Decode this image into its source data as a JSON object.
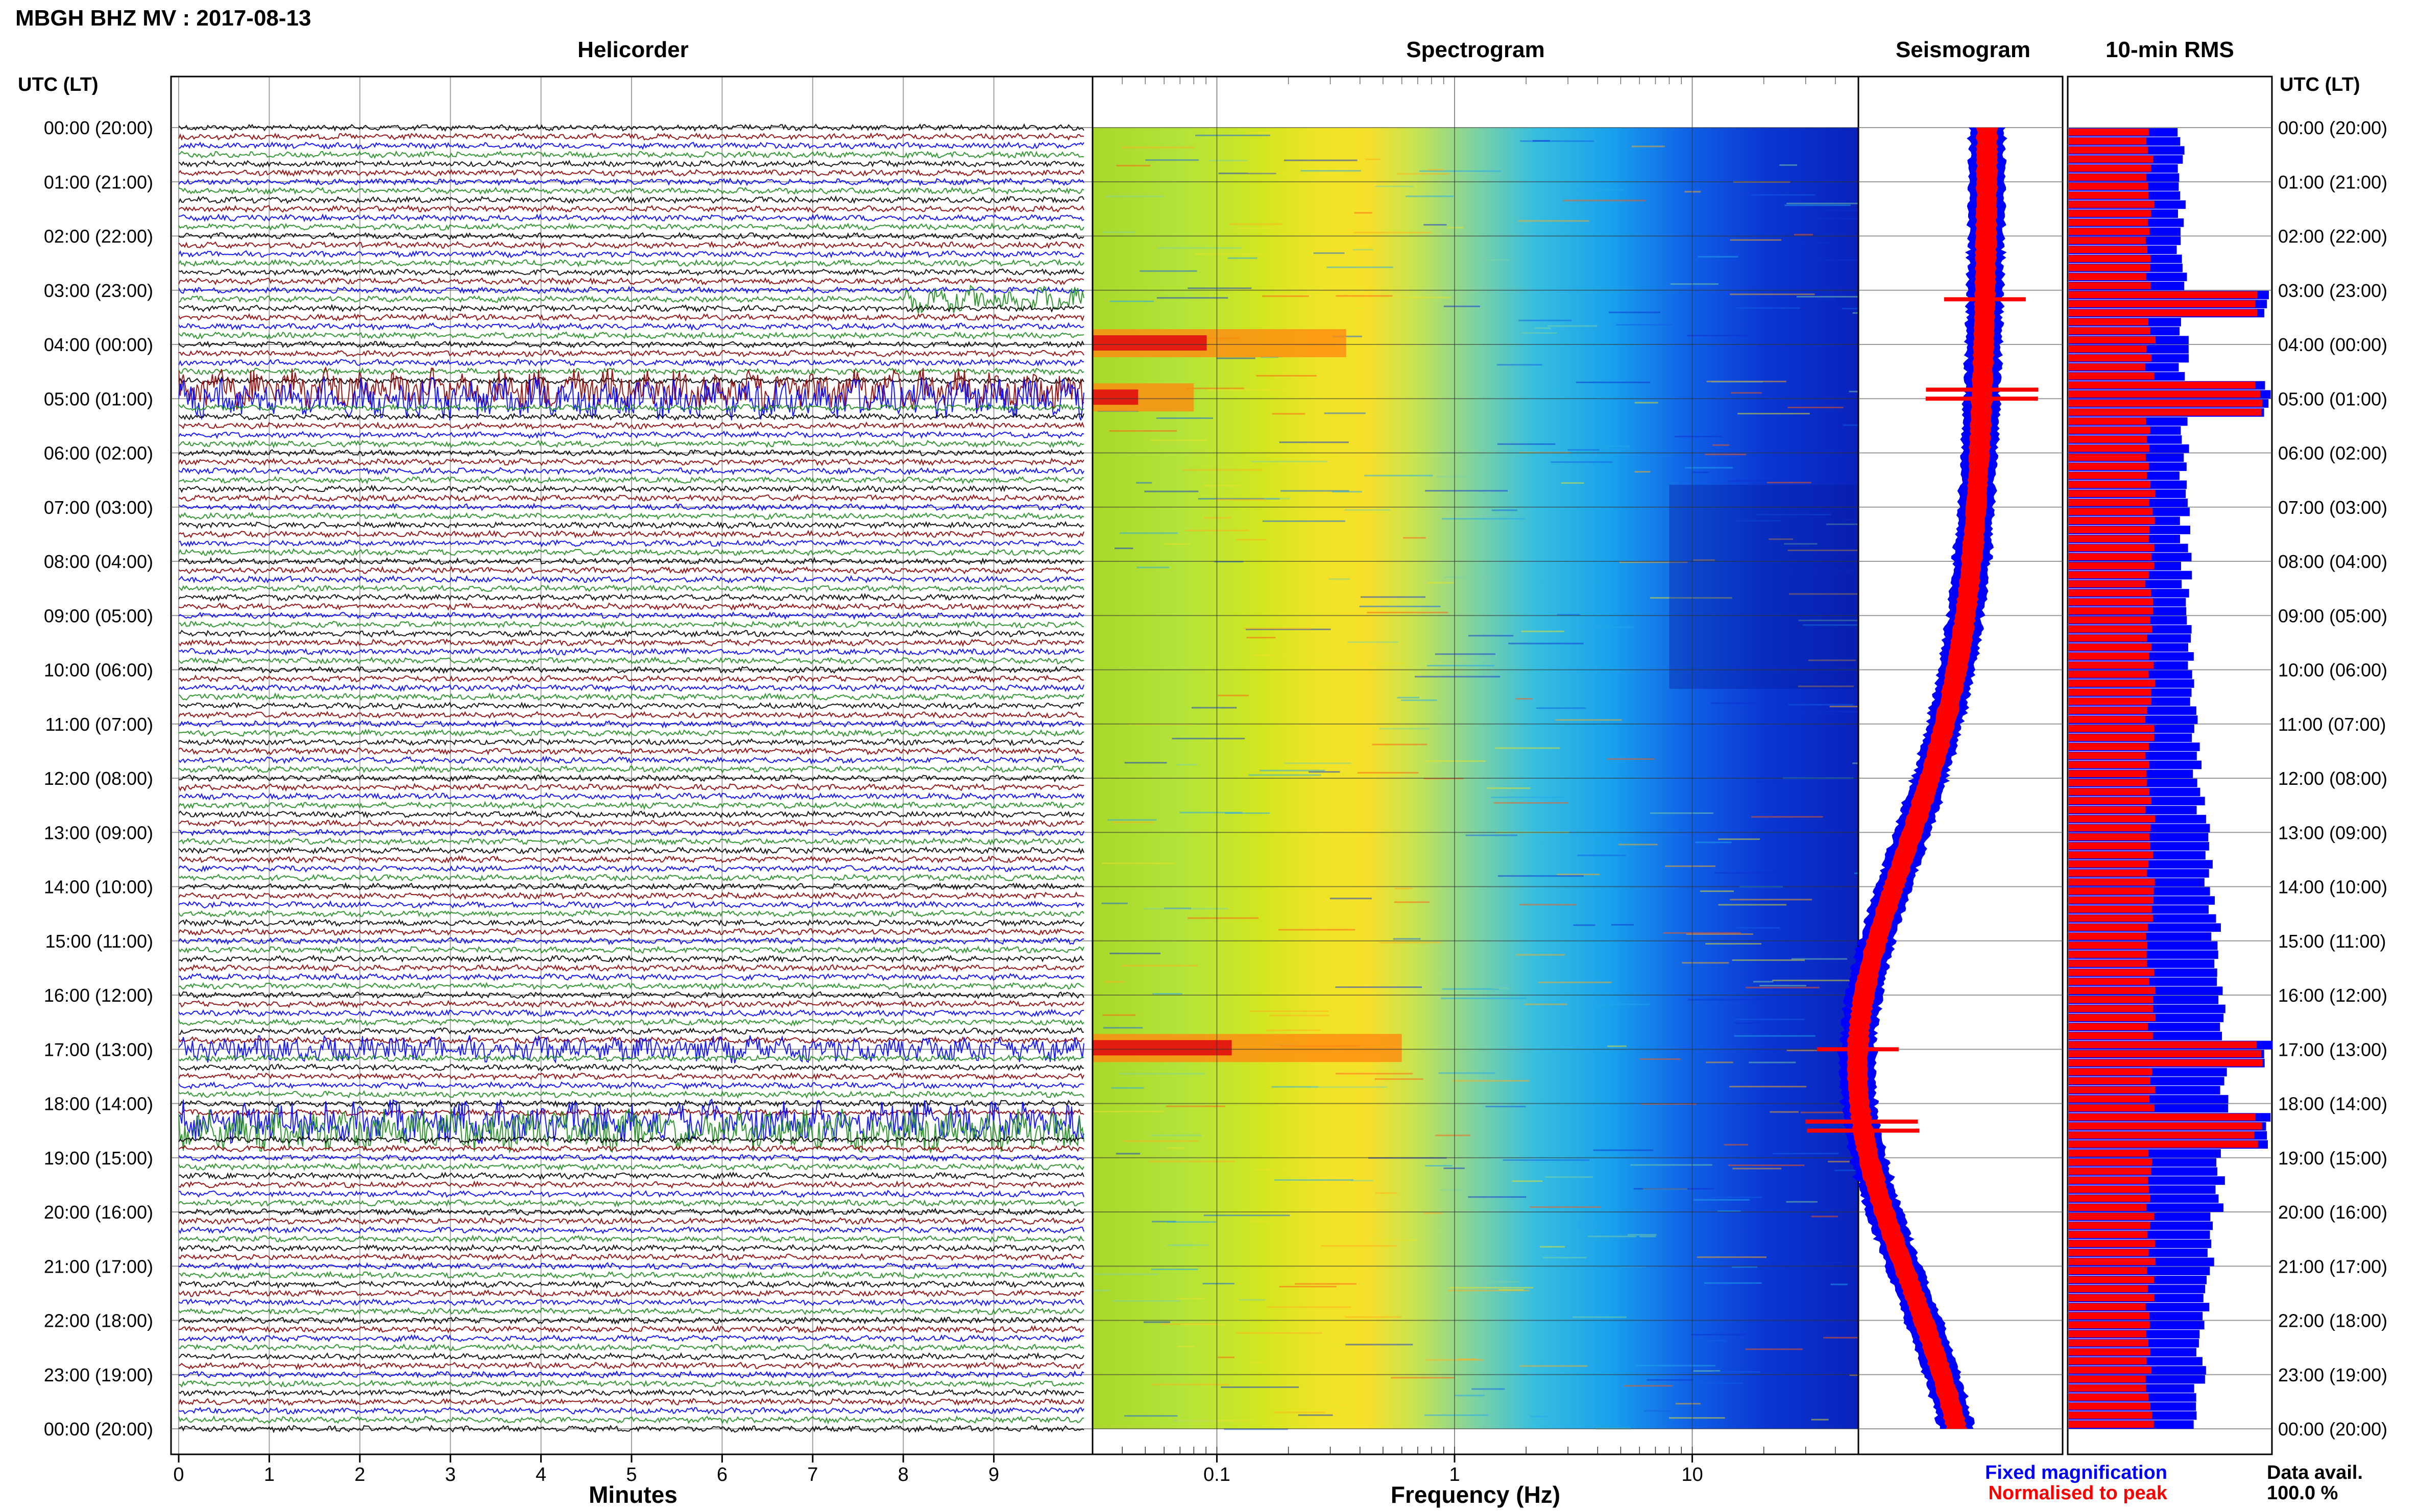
{
  "figure": {
    "title": "MBGH BHZ MV : 2017-08-13",
    "time_axis_label": "UTC (LT)",
    "hour_labels": [
      "00:00 (20:00)",
      "01:00 (21:00)",
      "02:00 (22:00)",
      "03:00 (23:00)",
      "04:00 (00:00)",
      "05:00 (01:00)",
      "06:00 (02:00)",
      "07:00 (03:00)",
      "08:00 (04:00)",
      "09:00 (05:00)",
      "10:00 (06:00)",
      "11:00 (07:00)",
      "12:00 (08:00)",
      "13:00 (09:00)",
      "14:00 (10:00)",
      "15:00 (11:00)",
      "16:00 (12:00)",
      "17:00 (13:00)",
      "18:00 (14:00)",
      "19:00 (15:00)",
      "20:00 (16:00)",
      "21:00 (17:00)",
      "22:00 (18:00)",
      "23:00 (19:00)",
      "00:00 (20:00)"
    ],
    "colors": {
      "black": "#000000",
      "red": "#8b0000",
      "green": "#1e8c1e",
      "blue": "#0000ff",
      "rms_fixed": "#0000ff",
      "rms_norm": "#ff0000"
    }
  },
  "chart_data": [
    {
      "type": "line",
      "title": "Helicorder",
      "xlabel": "Minutes",
      "x_ticks": [
        "0",
        "1",
        "2",
        "3",
        "4",
        "5",
        "6",
        "7",
        "8",
        "9"
      ],
      "xlim": [
        0,
        10
      ],
      "lines_per_hour": 6,
      "line_colors": [
        "black",
        "red",
        "blue",
        "green"
      ],
      "events": [
        {
          "time": "03:10",
          "amplitude": "high",
          "minutes": [
            8,
            10
          ]
        },
        {
          "time": "04:50",
          "amplitude": "very high",
          "minutes": [
            0,
            10
          ]
        },
        {
          "time": "05:00",
          "amplitude": "very high",
          "minutes": [
            0,
            10
          ]
        },
        {
          "time": "17:00",
          "amplitude": "high",
          "minutes": [
            0,
            10
          ]
        },
        {
          "time": "18:20",
          "amplitude": "very high",
          "minutes": [
            0,
            10
          ]
        },
        {
          "time": "18:30",
          "amplitude": "very high",
          "minutes": [
            0,
            10
          ]
        }
      ]
    },
    {
      "type": "heatmap",
      "title": "Spectrogram",
      "xlabel": "Frequency (Hz)",
      "x_scale": "log",
      "xlim": [
        0.03,
        50
      ],
      "x_ticks": [
        "0.1",
        "1",
        "10"
      ],
      "colormap": "jet",
      "events": [
        {
          "time": "04:00",
          "band_hz": [
            0.03,
            0.35
          ]
        },
        {
          "time": "05:00",
          "band_hz": [
            0.03,
            0.08
          ]
        },
        {
          "time": "17:00",
          "band_hz": [
            0.03,
            0.6
          ]
        }
      ]
    },
    {
      "type": "line",
      "title": "Seismogram",
      "legend": [
        "Fixed magnification",
        "Normalised to peak"
      ]
    },
    {
      "type": "bar",
      "title": "10-min RMS",
      "legend": [
        "Fixed magnification",
        "Normalised to peak"
      ]
    }
  ],
  "legend": {
    "fixed": "Fixed magnification",
    "normalised": "Normalised to peak"
  },
  "data_avail": {
    "label": "Data avail.",
    "value": "100.0 %"
  }
}
